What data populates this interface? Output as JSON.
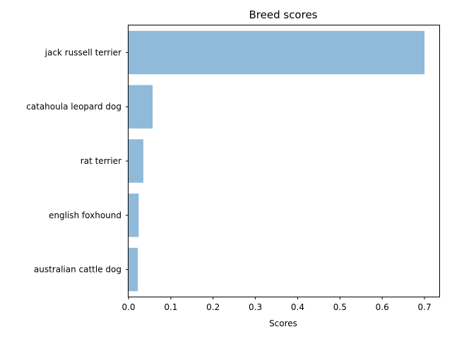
{
  "chart_data": {
    "type": "bar",
    "orientation": "horizontal",
    "title": "Breed scores",
    "xlabel": "Scores",
    "ylabel": "",
    "categories": [
      "jack russell terrier",
      "catahoula leopard dog",
      "rat terrier",
      "english foxhound",
      "australian cattle dog"
    ],
    "values": [
      0.7,
      0.057,
      0.035,
      0.024,
      0.022
    ],
    "xlim": [
      0,
      0.735
    ],
    "xticks": [
      "0.0",
      "0.1",
      "0.2",
      "0.3",
      "0.4",
      "0.5",
      "0.6",
      "0.7"
    ],
    "grid": false,
    "bar_color": "#8fbad9"
  }
}
